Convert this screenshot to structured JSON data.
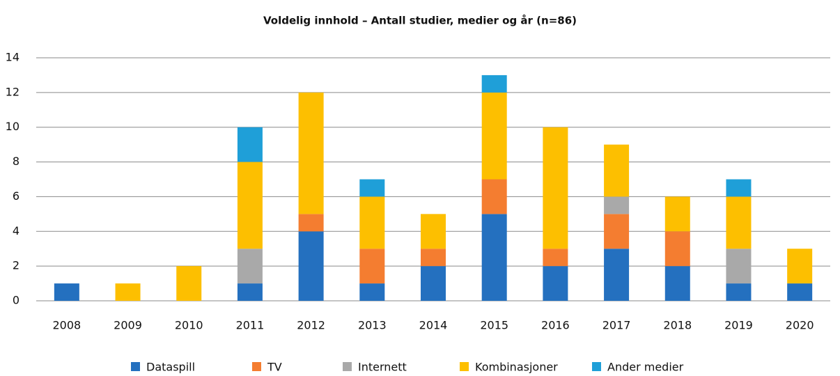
{
  "chart_data": {
    "type": "stacked_bar",
    "title": "Voldelig innhold – Antall studier, medier og år (n=86)",
    "categories": [
      "2008",
      "2009",
      "2010",
      "2011",
      "2012",
      "2013",
      "2014",
      "2015",
      "2016",
      "2017",
      "2018",
      "2019",
      "2020"
    ],
    "series": [
      {
        "name": "Dataspill",
        "color": "#2470bf",
        "values": [
          1,
          0,
          0,
          1,
          4,
          1,
          2,
          5,
          2,
          3,
          2,
          1,
          1
        ]
      },
      {
        "name": "TV",
        "color": "#f47d30",
        "values": [
          0,
          0,
          0,
          0,
          1,
          2,
          1,
          2,
          1,
          2,
          2,
          0,
          0
        ]
      },
      {
        "name": "Internett",
        "color": "#a9a9a9",
        "values": [
          0,
          0,
          0,
          2,
          0,
          0,
          0,
          0,
          0,
          1,
          0,
          2,
          0
        ]
      },
      {
        "name": "Kombinasjoner",
        "color": "#fdbf00",
        "values": [
          0,
          1,
          2,
          5,
          7,
          3,
          2,
          5,
          7,
          3,
          2,
          3,
          2
        ]
      },
      {
        "name": "Ander medier",
        "color": "#1f9fd8",
        "values": [
          0,
          0,
          0,
          2,
          0,
          1,
          0,
          1,
          0,
          0,
          0,
          1,
          0
        ]
      }
    ],
    "ylim": [
      0,
      14
    ],
    "yticks": [
      0,
      2,
      4,
      6,
      8,
      10,
      12,
      14
    ],
    "grid": true,
    "legend": "bottom"
  }
}
